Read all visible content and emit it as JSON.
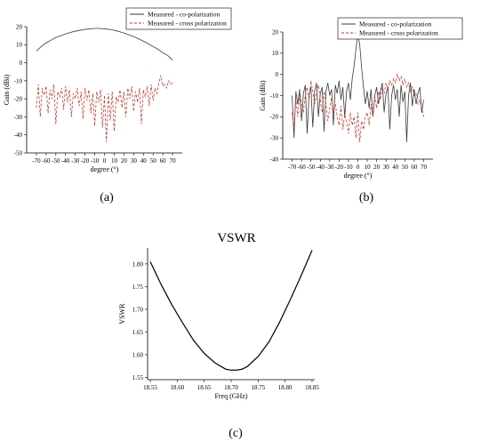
{
  "chart_data": [
    {
      "type": "line",
      "panel_label": "(a)",
      "xlabel": "degree (°)",
      "ylabel": "Gain (dBi)",
      "xlim": [
        -80,
        80
      ],
      "ylim": [
        -50,
        20
      ],
      "xticks": [
        -70,
        -60,
        -50,
        -40,
        -30,
        -20,
        -10,
        0,
        10,
        20,
        30,
        40,
        50,
        60,
        70
      ],
      "yticks": [
        -50,
        -40,
        -30,
        -20,
        -10,
        0,
        10,
        20
      ],
      "legend_position": "top",
      "series": [
        {
          "name": "Measured - co-polarization",
          "style": "solid",
          "color": "#3a3a3a",
          "x": [
            -70,
            -65,
            -60,
            -55,
            -50,
            -45,
            -40,
            -35,
            -30,
            -25,
            -20,
            -15,
            -10,
            -5,
            0,
            5,
            10,
            15,
            20,
            25,
            30,
            35,
            40,
            45,
            50,
            55,
            60,
            65,
            70
          ],
          "y": [
            6.5,
            9,
            11,
            12.5,
            14,
            15,
            16,
            16.8,
            17.5,
            18,
            18.5,
            18.8,
            19,
            19,
            18.8,
            18.5,
            18,
            17.3,
            16.5,
            15.5,
            14.5,
            13.3,
            12,
            10.5,
            9,
            7.5,
            5.5,
            4,
            1.5
          ]
        },
        {
          "name": "Measured - cross polarization",
          "style": "dashed",
          "color": "#c0392b",
          "x": [
            -70,
            -68,
            -66,
            -64,
            -62,
            -60,
            -58,
            -56,
            -54,
            -52,
            -50,
            -48,
            -46,
            -44,
            -42,
            -40,
            -38,
            -36,
            -34,
            -32,
            -30,
            -28,
            -26,
            -24,
            -22,
            -20,
            -18,
            -16,
            -14,
            -12,
            -10,
            -8,
            -6,
            -4,
            -2,
            0,
            2,
            4,
            6,
            8,
            10,
            12,
            14,
            16,
            18,
            20,
            22,
            24,
            26,
            28,
            30,
            32,
            34,
            36,
            38,
            40,
            42,
            44,
            46,
            48,
            50,
            52,
            54,
            56,
            58,
            60,
            62,
            64,
            66,
            68,
            70
          ],
          "y": [
            -25,
            -12,
            -30,
            -14,
            -18,
            -13,
            -28,
            -15,
            -20,
            -12,
            -34,
            -16,
            -19,
            -14,
            -26,
            -13,
            -22,
            -15,
            -30,
            -17,
            -20,
            -14,
            -24,
            -16,
            -31,
            -14,
            -21,
            -15,
            -28,
            -17,
            -35,
            -16,
            -22,
            -15,
            -36,
            -18,
            -44,
            -17,
            -32,
            -16,
            -38,
            -19,
            -22,
            -15,
            -25,
            -16,
            -30,
            -14,
            -20,
            -13,
            -27,
            -16,
            -22,
            -14,
            -34,
            -15,
            -19,
            -13,
            -24,
            -12,
            -21,
            -14,
            -17,
            -11,
            -7,
            -13,
            -12,
            -14,
            -10,
            -12,
            -11
          ]
        }
      ]
    },
    {
      "type": "line",
      "panel_label": "(b)",
      "xlabel": "degree (°)",
      "ylabel": "Gain (dBi)",
      "xlim": [
        -80,
        80
      ],
      "ylim": [
        -40,
        20
      ],
      "xticks": [
        -70,
        -60,
        -50,
        -40,
        -30,
        -20,
        -10,
        0,
        10,
        20,
        30,
        40,
        50,
        60,
        70
      ],
      "yticks": [
        -40,
        -30,
        -20,
        -10,
        0,
        10,
        20
      ],
      "legend_position": "top-right",
      "series": [
        {
          "name": "Measured - co-polarization",
          "style": "solid",
          "color": "#3a3a3a",
          "x": [
            -70,
            -68,
            -66,
            -64,
            -62,
            -60,
            -58,
            -56,
            -54,
            -52,
            -50,
            -48,
            -46,
            -44,
            -42,
            -40,
            -38,
            -36,
            -34,
            -32,
            -30,
            -28,
            -26,
            -24,
            -22,
            -20,
            -18,
            -16,
            -14,
            -12,
            -10,
            -8,
            -6,
            -4,
            -2,
            0,
            2,
            4,
            6,
            8,
            10,
            12,
            14,
            16,
            18,
            20,
            22,
            24,
            26,
            28,
            30,
            32,
            34,
            36,
            38,
            40,
            42,
            44,
            46,
            48,
            50,
            52,
            54,
            56,
            58,
            60,
            62,
            64,
            66,
            68,
            70
          ],
          "y": [
            -10,
            -30,
            -8,
            -14,
            -7,
            -22,
            -9,
            -5,
            -28,
            -10,
            -6,
            -25,
            -8,
            -4,
            -20,
            -9,
            -6,
            -27,
            -8,
            -4,
            -10,
            -7,
            -24,
            -5,
            -9,
            -3,
            -12,
            -6,
            -20,
            -8,
            -4,
            -12,
            -2,
            4,
            12,
            19,
            14,
            3,
            -6,
            -14,
            -8,
            -16,
            -7,
            -20,
            -10,
            -6,
            -14,
            -8,
            -4,
            -18,
            -9,
            -6,
            -26,
            -10,
            -5,
            -12,
            -7,
            -20,
            -5,
            -13,
            -8,
            -32,
            -10,
            -4,
            -15,
            -7,
            -14,
            -9,
            -6,
            -18,
            -12
          ]
        },
        {
          "name": "Measured - cross polarization",
          "style": "dashed",
          "color": "#c0392b",
          "x": [
            -70,
            -68,
            -66,
            -64,
            -62,
            -60,
            -58,
            -56,
            -54,
            -52,
            -50,
            -48,
            -46,
            -44,
            -42,
            -40,
            -38,
            -36,
            -34,
            -32,
            -30,
            -28,
            -26,
            -24,
            -22,
            -20,
            -18,
            -16,
            -14,
            -12,
            -10,
            -8,
            -6,
            -4,
            -2,
            0,
            2,
            4,
            6,
            8,
            10,
            12,
            14,
            16,
            18,
            20,
            22,
            24,
            26,
            28,
            30,
            32,
            34,
            36,
            38,
            40,
            42,
            44,
            46,
            48,
            50,
            52,
            54,
            56,
            58,
            60,
            62,
            64,
            66,
            68,
            70
          ],
          "y": [
            -18,
            -25,
            -12,
            -20,
            -8,
            -14,
            -18,
            -10,
            -6,
            -12,
            -3,
            -8,
            -14,
            -9,
            -5,
            -12,
            -18,
            -8,
            -14,
            -22,
            -16,
            -11,
            -18,
            -14,
            -20,
            -24,
            -15,
            -26,
            -19,
            -22,
            -28,
            -18,
            -24,
            -20,
            -30,
            -18,
            -32,
            -22,
            -26,
            -20,
            -18,
            -24,
            -14,
            -20,
            -10,
            -16,
            -8,
            -12,
            -6,
            -9,
            -4,
            -7,
            -3,
            -5,
            -2,
            -4,
            0,
            -3,
            -1,
            -5,
            -2,
            -6,
            -4,
            -8,
            -6,
            -10,
            -9,
            -14,
            -12,
            -16,
            -20
          ]
        }
      ]
    },
    {
      "type": "line",
      "panel_label": "(c)",
      "title": "VSWR",
      "xlabel": "Freq (GHz)",
      "ylabel": "VSWR",
      "xlim": [
        18.545,
        18.855
      ],
      "ylim": [
        1.545,
        1.835
      ],
      "xticks": [
        18.55,
        18.6,
        18.65,
        18.7,
        18.75,
        18.8,
        18.85
      ],
      "yticks": [
        1.55,
        1.6,
        1.65,
        1.7,
        1.75,
        1.8
      ],
      "series": [
        {
          "name": "",
          "style": "solid",
          "color": "#000000",
          "x": [
            18.55,
            18.57,
            18.59,
            18.61,
            18.63,
            18.65,
            18.67,
            18.69,
            18.7,
            18.71,
            18.72,
            18.73,
            18.75,
            18.77,
            18.79,
            18.81,
            18.83,
            18.85
          ],
          "y": [
            1.805,
            1.755,
            1.71,
            1.67,
            1.632,
            1.603,
            1.582,
            1.568,
            1.566,
            1.566,
            1.568,
            1.574,
            1.596,
            1.628,
            1.672,
            1.722,
            1.775,
            1.83
          ]
        }
      ]
    }
  ]
}
